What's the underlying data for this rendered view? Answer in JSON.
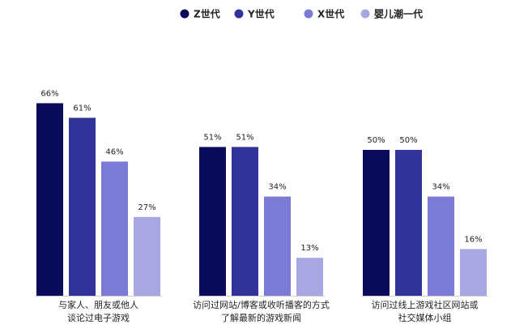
{
  "chart_data": {
    "type": "bar",
    "categories": [
      "与家人、朋友或他人\n谈论过电子游戏",
      "访问过网站/博客或收听播客的方式\n了解最新的游戏新闻",
      "访问过线上游戏社区网站或\n社交媒体小组"
    ],
    "series": [
      {
        "name": "Z世代",
        "color": "#0b0b5c",
        "values": [
          66,
          51,
          50
        ],
        "value_labels": [
          "66%",
          "51%",
          "50%"
        ]
      },
      {
        "name": "Y世代",
        "color": "#32339a",
        "values": [
          61,
          51,
          50
        ],
        "value_labels": [
          "61%",
          "51%",
          "50%"
        ]
      },
      {
        "name": "X世代",
        "color": "#7b7bd6",
        "values": [
          46,
          34,
          34
        ],
        "value_labels": [
          "46%",
          "34%",
          "34%"
        ]
      },
      {
        "name": "婴儿潮一代",
        "color": "#a9a7e2",
        "values": [
          27,
          13,
          16
        ],
        "value_labels": [
          "27%",
          "13%",
          "16%"
        ]
      }
    ],
    "ylim": [
      0,
      100
    ]
  }
}
